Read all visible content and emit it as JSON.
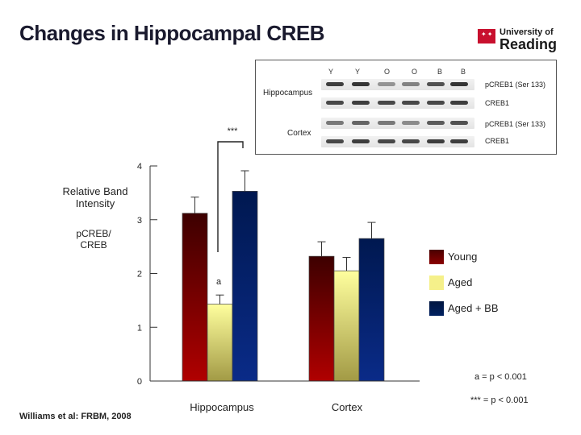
{
  "title": "Changes in Hippocampal CREB",
  "logo": {
    "line1": "University of",
    "line2": "Reading"
  },
  "blot": {
    "lanes": [
      "Y",
      "Y",
      "O",
      "O",
      "B",
      "B"
    ],
    "rows": [
      {
        "label": "pCREB1 (Ser 133)",
        "intensity": [
          0.9,
          0.95,
          0.45,
          0.55,
          0.8,
          0.95
        ]
      },
      {
        "label": "CREB1",
        "intensity": [
          0.85,
          0.9,
          0.85,
          0.85,
          0.85,
          0.9
        ]
      },
      {
        "label": "pCREB1 (Ser 133)",
        "intensity": [
          0.6,
          0.7,
          0.6,
          0.5,
          0.75,
          0.8
        ]
      },
      {
        "label": "CREB1",
        "intensity": [
          0.85,
          0.9,
          0.85,
          0.85,
          0.9,
          0.9
        ]
      }
    ],
    "tissue_labels": [
      "Hippocampus",
      "Cortex"
    ]
  },
  "y_axis_label": {
    "line1": "Relative Band",
    "line2": "Intensity",
    "line3": "pCREB/",
    "line4": "CREB"
  },
  "significance_marker": "***",
  "group_marker": "a",
  "legend": [
    {
      "label": "Young",
      "color": "#8b0000"
    },
    {
      "label": "Aged",
      "color": "#f5f08a"
    },
    {
      "label": "Aged + BB",
      "color": "#002060"
    }
  ],
  "notes": {
    "a": "a = p < 0.001",
    "stars": "*** = p < 0.001"
  },
  "citation": "Williams et al:  FRBM, 2008",
  "chart_data": {
    "type": "bar",
    "categories": [
      "Hippocampus",
      "Cortex"
    ],
    "series": [
      {
        "name": "Young",
        "values": [
          3.12,
          2.32
        ],
        "errors": [
          0.3,
          0.27
        ]
      },
      {
        "name": "Aged",
        "values": [
          1.43,
          2.05
        ],
        "errors": [
          0.17,
          0.25
        ]
      },
      {
        "name": "Aged + BB",
        "values": [
          3.53,
          2.65
        ],
        "errors": [
          0.38,
          0.3
        ]
      }
    ],
    "ylim": [
      0,
      4
    ],
    "yticks": [
      0,
      1,
      2,
      3,
      4
    ],
    "ylabel": "Relative Band Intensity pCREB/ CREB",
    "legend_position": "right"
  }
}
